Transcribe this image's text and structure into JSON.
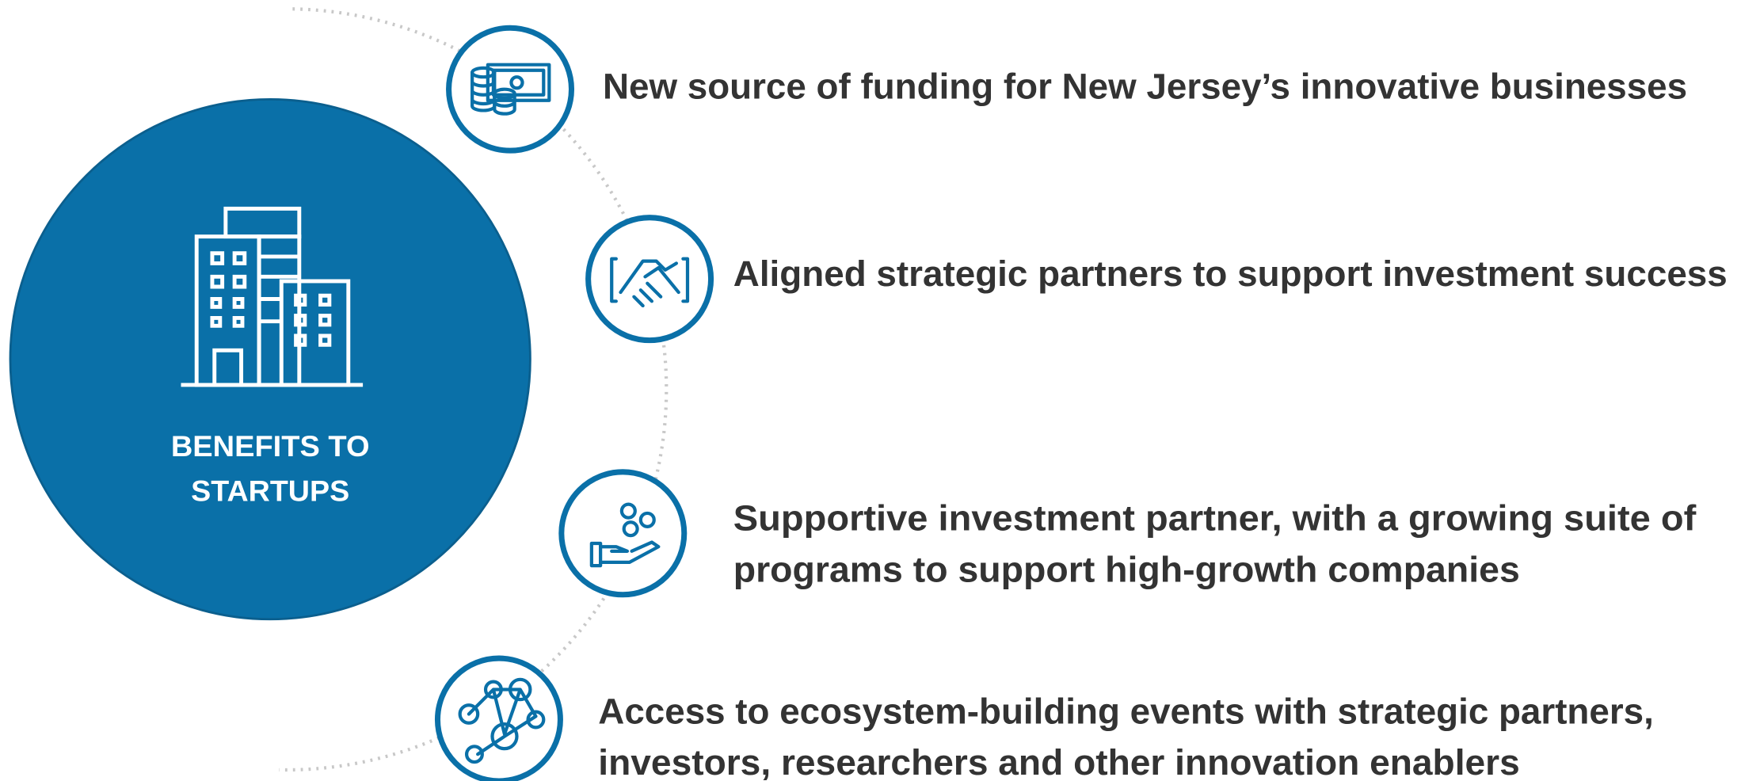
{
  "center": {
    "lines": [
      "BENEFITS TO",
      "STARTUPS"
    ]
  },
  "items": [
    {
      "lines": [
        "New source of funding for New Jersey’s innovative businesses"
      ]
    },
    {
      "lines": [
        "Aligned strategic partners to support investment success"
      ]
    },
    {
      "lines": [
        "Supportive investment partner, with a growing suite of",
        "programs to support high-growth companies"
      ]
    },
    {
      "lines": [
        "Access to ecosystem-building events with strategic partners,",
        "investors, researchers and other innovation enablers"
      ]
    }
  ]
}
